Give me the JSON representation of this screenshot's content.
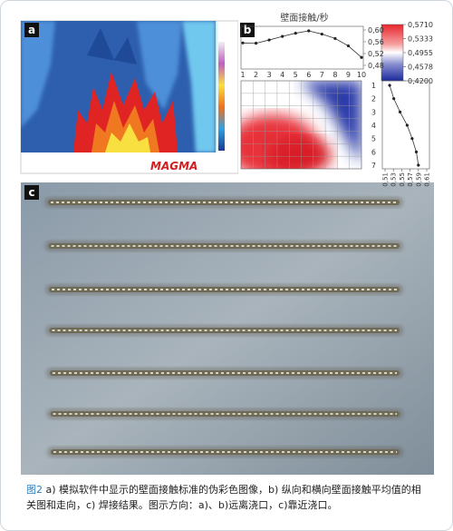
{
  "panels": {
    "a": {
      "label": "a",
      "logo": "MAGMA"
    },
    "b": {
      "label": "b",
      "title": "壁面接触/秒",
      "top_chart": {
        "type": "line",
        "x": [
          1,
          2,
          3,
          4,
          5,
          6,
          7,
          8,
          9,
          10
        ],
        "values": [
          0.556,
          0.555,
          0.566,
          0.578,
          0.589,
          0.597,
          0.586,
          0.571,
          0.546,
          0.507
        ],
        "ylim": [
          0.48,
          0.6
        ],
        "yticks": [
          {
            "value": 0.6,
            "label": "0,60"
          },
          {
            "value": 0.56,
            "label": "0,56"
          },
          {
            "value": 0.52,
            "label": "0,52"
          },
          {
            "value": 0.48,
            "label": "0,48"
          }
        ]
      },
      "colorbar": {
        "ticks": [
          {
            "value": 0.571,
            "label": "0,5710"
          },
          {
            "value": 0.5333,
            "label": "0,5333"
          },
          {
            "value": 0.4955,
            "label": "0,4955"
          },
          {
            "value": 0.4578,
            "label": "0,4578"
          },
          {
            "value": 0.42,
            "label": "0,4200"
          }
        ]
      },
      "right_chart": {
        "type": "line",
        "y": [
          1,
          2,
          3,
          4,
          5,
          6,
          7
        ],
        "values": [
          0.521,
          0.531,
          0.546,
          0.563,
          0.575,
          0.585,
          0.59
        ],
        "xlim": [
          0.51,
          0.61
        ],
        "xticks": [
          {
            "value": 0.51,
            "label": "0,51"
          },
          {
            "value": 0.53,
            "label": "0,53"
          },
          {
            "value": 0.55,
            "label": "0,55"
          },
          {
            "value": 0.57,
            "label": "0,57"
          },
          {
            "value": 0.59,
            "label": "0,59"
          },
          {
            "value": 0.61,
            "label": "0,61"
          }
        ]
      }
    },
    "c": {
      "label": "c"
    }
  },
  "caption": {
    "label": "图2",
    "text": " a) 模拟软件中显示的壁面接触标准的伪彩色图像，b) 纵向和横向壁面接触平均值的相关图和走向，c) 焊接结果。图示方向：a)、b)远离浇口，c)靠近浇口。"
  }
}
